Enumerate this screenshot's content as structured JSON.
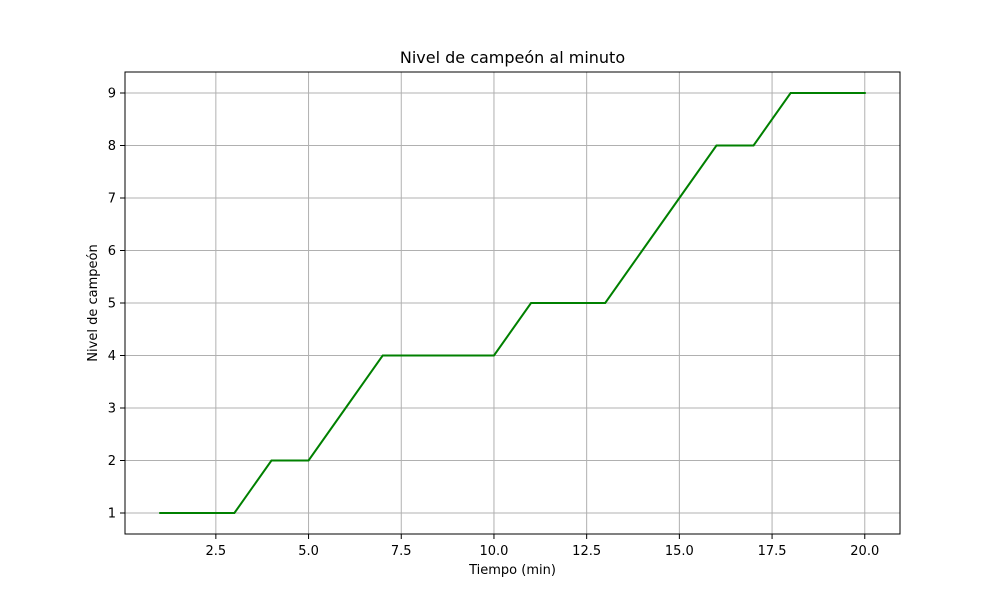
{
  "chart_data": {
    "type": "line",
    "title": "Nivel de campeón al minuto",
    "xlabel": "Tiempo (min)",
    "ylabel": "Nivel de campeón",
    "x": [
      1,
      2,
      3,
      4,
      5,
      6,
      7,
      8,
      9,
      10,
      11,
      12,
      13,
      14,
      15,
      16,
      17,
      18,
      19,
      20
    ],
    "series": [
      {
        "values": [
          1,
          1,
          1,
          2,
          2,
          3,
          4,
          4,
          4,
          4,
          5,
          5,
          5,
          6,
          7,
          8,
          8,
          9,
          9,
          9
        ],
        "color": "#008000"
      }
    ],
    "xlim": [
      0.05,
      20.95
    ],
    "ylim": [
      0.6,
      9.4
    ],
    "xticks": [
      2.5,
      5.0,
      7.5,
      10.0,
      12.5,
      15.0,
      17.5,
      20.0
    ],
    "xtick_labels": [
      "2.5",
      "5.0",
      "7.5",
      "10.0",
      "12.5",
      "15.0",
      "17.5",
      "20.0"
    ],
    "yticks": [
      1,
      2,
      3,
      4,
      5,
      6,
      7,
      8,
      9
    ],
    "ytick_labels": [
      "1",
      "2",
      "3",
      "4",
      "5",
      "6",
      "7",
      "8",
      "9"
    ],
    "grid": true,
    "legend": false
  }
}
